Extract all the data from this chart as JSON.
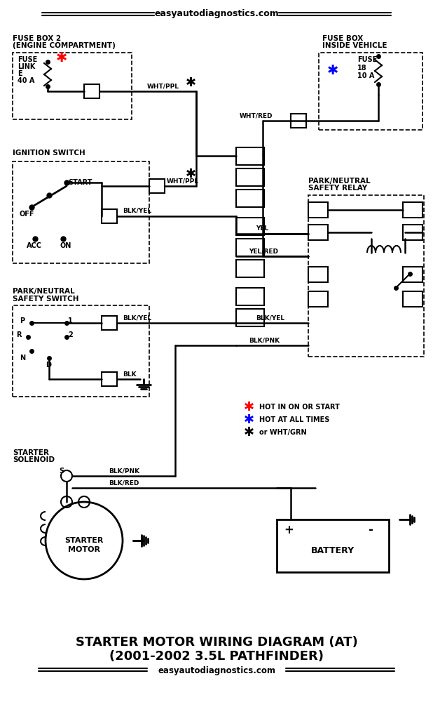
{
  "title_line1": "STARTER MOTOR WIRING DIAGRAM (AT)",
  "title_line2": "(2001-2002 3.5L PATHFINDER)",
  "website": "easyautodiagnostics.com",
  "bg_color": "#ffffff",
  "line_color": "#808080",
  "text_color": "#000000",
  "box_line_color": "#000000"
}
